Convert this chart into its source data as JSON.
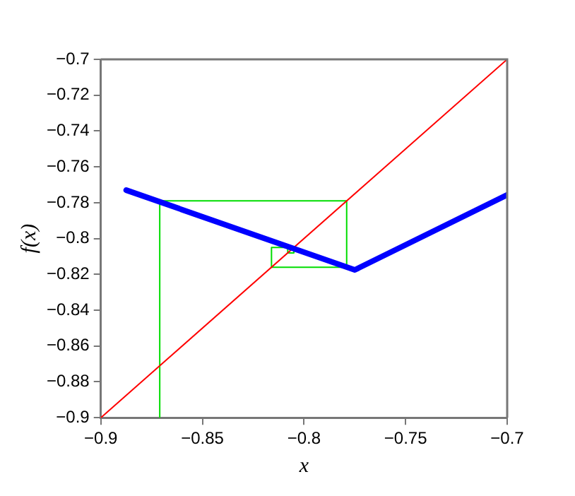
{
  "chart_data": {
    "type": "line",
    "xlabel": "x",
    "ylabel": "f(x)",
    "xlim": [
      -0.9,
      -0.7
    ],
    "ylim": [
      -0.9,
      -0.7
    ],
    "xticks": [
      -0.9,
      -0.85,
      -0.8,
      -0.75,
      -0.7
    ],
    "yticks": [
      -0.9,
      -0.88,
      -0.86,
      -0.84,
      -0.82,
      -0.8,
      -0.78,
      -0.76,
      -0.74,
      -0.72,
      -0.7
    ],
    "grid": false,
    "legend": false,
    "marker": "none",
    "line_style": "solid",
    "series": [
      {
        "color": "#0000ff",
        "x": [
          -0.8875,
          -0.775,
          -0.7
        ],
        "values": [
          -0.773,
          -0.8175,
          -0.7756
        ]
      },
      {
        "color": "#ff0000",
        "x": [
          -0.9,
          -0.7
        ],
        "values": [
          -0.9,
          -0.7
        ]
      },
      {
        "color": "#00dd00",
        "x": [
          -0.871,
          -0.871,
          -0.779,
          -0.779,
          -0.816,
          -0.816,
          -0.805,
          -0.805,
          -0.808,
          -0.808
        ],
        "values": [
          -0.9,
          -0.779,
          -0.779,
          -0.816,
          -0.816,
          -0.805,
          -0.805,
          -0.808,
          -0.808,
          -0.806
        ]
      }
    ]
  }
}
